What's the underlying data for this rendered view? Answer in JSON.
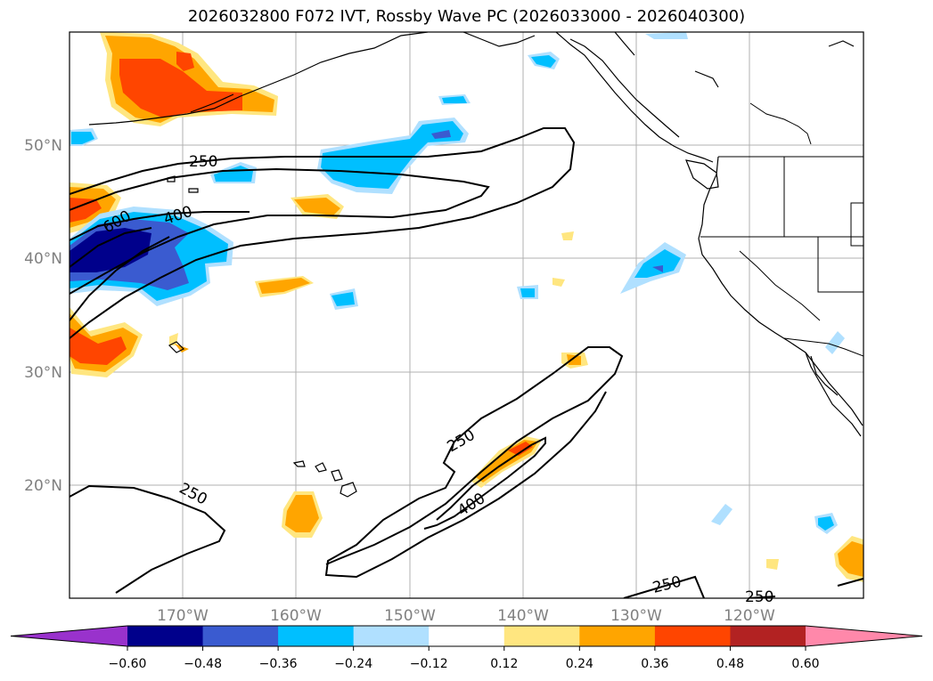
{
  "title": "2026032800 F072 IVT, Rossby Wave PC (2026033000 - 2026040300)",
  "lat_labels": [
    "50°N",
    "40°N",
    "30°N",
    "20°N"
  ],
  "lon_labels": [
    "170°W",
    "160°W",
    "150°W",
    "140°W",
    "130°W",
    "120°W"
  ],
  "contour_labels": [
    "250",
    "400",
    "600",
    "250",
    "250",
    "400",
    "250",
    "250",
    "250"
  ],
  "colorbar": {
    "ticks": [
      "−0.60",
      "−0.48",
      "−0.36",
      "−0.24",
      "−0.12",
      "0.12",
      "0.24",
      "0.36",
      "0.48",
      "0.60"
    ],
    "colors": [
      "#9932cc",
      "#00008b",
      "#3a5bd0",
      "#00bfff",
      "#b0e0ff",
      "#ffffff",
      "#ffe680",
      "#ffa500",
      "#ff4500",
      "#b22222",
      "#ff88aa"
    ]
  },
  "colors": {
    "ocean": "#ffffff",
    "grid": "#b0b0b0",
    "coast": "#000000"
  }
}
